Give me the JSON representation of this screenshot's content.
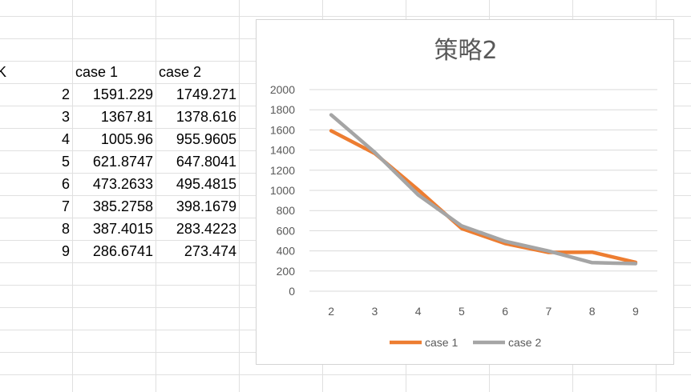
{
  "sheet": {
    "first_col_fragment": "K",
    "headers": [
      "case 1",
      "case 2"
    ],
    "rows": [
      {
        "x": "2",
        "c1": "1591.229",
        "c2": "1749.271"
      },
      {
        "x": "3",
        "c1": "1367.81",
        "c2": "1378.616"
      },
      {
        "x": "4",
        "c1": "1005.96",
        "c2": "955.9605"
      },
      {
        "x": "5",
        "c1": "621.8747",
        "c2": "647.8041"
      },
      {
        "x": "6",
        "c1": "473.2633",
        "c2": "495.4815"
      },
      {
        "x": "7",
        "c1": "385.2758",
        "c2": "398.1679"
      },
      {
        "x": "8",
        "c1": "387.4015",
        "c2": "283.4223"
      },
      {
        "x": "9",
        "c1": "286.6741",
        "c2": "273.474"
      }
    ]
  },
  "colors": {
    "series1": "#ed7d31",
    "series2": "#a5a5a5",
    "gridline": "#d9d9d9",
    "cell_border": "#e0e0e0",
    "text": "#595959"
  },
  "chart_data": {
    "type": "line",
    "title": "策略2",
    "categories": [
      "2",
      "3",
      "4",
      "5",
      "6",
      "7",
      "8",
      "9"
    ],
    "ylim": [
      0,
      2000
    ],
    "yticks": [
      "2000",
      "1800",
      "1600",
      "1400",
      "1200",
      "1000",
      "800",
      "600",
      "400",
      "200",
      "0"
    ],
    "grid": true,
    "legend_position": "bottom",
    "series": [
      {
        "name": "case 1",
        "values": [
          1591.229,
          1367.81,
          1005.96,
          621.8747,
          473.2633,
          385.2758,
          387.4015,
          286.6741
        ]
      },
      {
        "name": "case 2",
        "values": [
          1749.271,
          1378.616,
          955.9605,
          647.8041,
          495.4815,
          398.1679,
          283.4223,
          273.474
        ]
      }
    ]
  }
}
